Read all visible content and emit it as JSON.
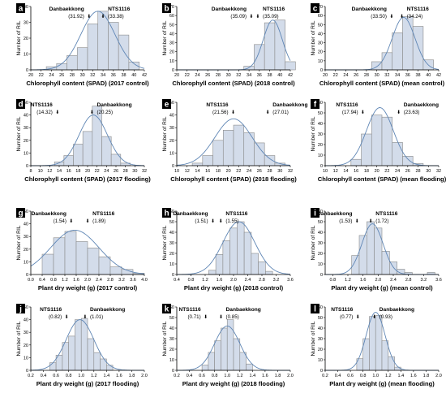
{
  "figure": {
    "colors": {
      "bar_fill": "#d3dcea",
      "bar_stroke": "#8a8a8a",
      "curve": "#5f86b5",
      "frame": "#000000",
      "label_box": "#000000"
    },
    "arrow_glyph": "⬇"
  },
  "chart_data": [
    {
      "panel_label": "a",
      "type": "bar",
      "xlabel": "Chlorophyll content (SPAD) (2017 control)",
      "ylabel": "Number of RIL",
      "x_ticks": [
        "20",
        "22",
        "24",
        "26",
        "28",
        "30",
        "32",
        "34",
        "36",
        "38",
        "40",
        "42"
      ],
      "xlim": [
        20,
        42
      ],
      "y_ticks": [
        "0",
        "10",
        "20",
        "30",
        "40"
      ],
      "ylim": [
        0,
        40
      ],
      "bin_width": 2,
      "bins": [
        {
          "x": 24,
          "y": 2
        },
        {
          "x": 26,
          "y": 4
        },
        {
          "x": 28,
          "y": 9
        },
        {
          "x": 30,
          "y": 14
        },
        {
          "x": 32,
          "y": 29
        },
        {
          "x": 34,
          "y": 37
        },
        {
          "x": 36,
          "y": 30
        },
        {
          "x": 38,
          "y": 22
        },
        {
          "x": 40,
          "y": 5
        }
      ],
      "curve": {
        "mean": 33.0,
        "sd": 3.3,
        "peak": 37
      },
      "annotations": [
        {
          "name": "Danbaekkong",
          "value": "(31.92)",
          "x": 31.92
        },
        {
          "name": "NTS1116",
          "value": "(33.38)",
          "x": 33.38
        }
      ]
    },
    {
      "panel_label": "b",
      "type": "bar",
      "xlabel": "Chlorophyll content (SPAD) (2018 control)",
      "ylabel": "Number of RIL",
      "x_ticks": [
        "20",
        "22",
        "24",
        "26",
        "28",
        "30",
        "32",
        "34",
        "36",
        "38",
        "40",
        "42"
      ],
      "xlim": [
        20,
        42
      ],
      "y_ticks": [
        "0",
        "10",
        "20",
        "30",
        "40",
        "50",
        "60",
        "70"
      ],
      "ylim": [
        0,
        70
      ],
      "bin_width": 2,
      "bins": [
        {
          "x": 34,
          "y": 4
        },
        {
          "x": 36,
          "y": 28
        },
        {
          "x": 38,
          "y": 52
        },
        {
          "x": 40,
          "y": 55
        },
        {
          "x": 42,
          "y": 9
        }
      ],
      "curve": {
        "mean": 38.6,
        "sd": 1.85,
        "peak": 55
      },
      "annotations": [
        {
          "name": "Danbaekkong",
          "value": "(35.09)",
          "x": 35.09
        },
        {
          "name": "NTS1116",
          "value": "(35.09)",
          "x": 35.09
        }
      ]
    },
    {
      "panel_label": "c",
      "type": "bar",
      "xlabel": "Chlorophyll content (SPAD) (mean control)",
      "ylabel": "Number of RIL",
      "x_ticks": [
        "20",
        "22",
        "24",
        "26",
        "28",
        "30",
        "32",
        "34",
        "36",
        "38",
        "40",
        "42"
      ],
      "xlim": [
        20,
        42
      ],
      "y_ticks": [
        "0",
        "10",
        "20",
        "30",
        "40",
        "50",
        "60",
        "70"
      ],
      "ylim": [
        0,
        70
      ],
      "bin_width": 2,
      "bins": [
        {
          "x": 30,
          "y": 9
        },
        {
          "x": 32,
          "y": 19
        },
        {
          "x": 34,
          "y": 41
        },
        {
          "x": 36,
          "y": 59
        },
        {
          "x": 38,
          "y": 48
        },
        {
          "x": 40,
          "y": 11
        }
      ],
      "curve": {
        "mean": 35.2,
        "sd": 2.2,
        "peak": 58
      },
      "annotations": [
        {
          "name": "Danbaekkong",
          "value": "(33.50)",
          "x": 33.5
        },
        {
          "name": "NTS1116",
          "value": "(34.24)",
          "x": 34.24
        }
      ]
    },
    {
      "panel_label": "d",
      "type": "bar",
      "xlabel": "Chlorophyll content (SPAD) (2017 flooding)",
      "ylabel": "Number of RIL",
      "x_ticks": [
        "8",
        "10",
        "12",
        "14",
        "16",
        "18",
        "20",
        "22",
        "24",
        "26",
        "28",
        "30",
        "32"
      ],
      "xlim": [
        8,
        32
      ],
      "y_ticks": [
        "0",
        "10",
        "20",
        "30",
        "40",
        "50"
      ],
      "ylim": [
        0,
        50
      ],
      "bin_width": 2,
      "bins": [
        {
          "x": 14,
          "y": 3
        },
        {
          "x": 16,
          "y": 8
        },
        {
          "x": 18,
          "y": 17
        },
        {
          "x": 20,
          "y": 27
        },
        {
          "x": 22,
          "y": 47
        },
        {
          "x": 24,
          "y": 23
        },
        {
          "x": 26,
          "y": 9
        },
        {
          "x": 28,
          "y": 2
        }
      ],
      "curve": {
        "mean": 21.2,
        "sd": 3.0,
        "peak": 40
      },
      "annotations": [
        {
          "name": "NTS1116",
          "value": "(14.32)",
          "x": 14.32
        },
        {
          "name": "Danbaekkong",
          "value": "(20.25)",
          "x": 20.25
        }
      ]
    },
    {
      "panel_label": "e",
      "type": "bar",
      "xlabel": "Chlorophyll content (SPAD) (2018 flooding)",
      "ylabel": "Number of RIL",
      "x_ticks": [
        "10",
        "12",
        "14",
        "16",
        "18",
        "20",
        "22",
        "24",
        "26",
        "28",
        "30",
        "32"
      ],
      "xlim": [
        10,
        32
      ],
      "y_ticks": [
        "0",
        "10",
        "20",
        "30",
        "40",
        "50"
      ],
      "ylim": [
        0,
        50
      ],
      "bin_width": 2,
      "bins": [
        {
          "x": 14,
          "y": 2
        },
        {
          "x": 16,
          "y": 8
        },
        {
          "x": 18,
          "y": 20
        },
        {
          "x": 20,
          "y": 28
        },
        {
          "x": 22,
          "y": 32
        },
        {
          "x": 24,
          "y": 26
        },
        {
          "x": 26,
          "y": 18
        },
        {
          "x": 28,
          "y": 8
        },
        {
          "x": 30,
          "y": 2
        }
      ],
      "curve": {
        "mean": 21.0,
        "sd": 3.6,
        "peak": 37
      },
      "annotations": [
        {
          "name": "NTS1116",
          "value": "(21.56)",
          "x": 21.56
        },
        {
          "name": "Danbaekkong",
          "value": "(27.01)",
          "x": 27.01
        }
      ]
    },
    {
      "panel_label": "f",
      "type": "bar",
      "xlabel": "Chlorophyll content (SPAD) (mean flooding)",
      "ylabel": "Number of RIL",
      "x_ticks": [
        "10",
        "12",
        "14",
        "16",
        "18",
        "20",
        "22",
        "24",
        "26",
        "28",
        "30",
        "32"
      ],
      "xlim": [
        10,
        32
      ],
      "y_ticks": [
        "0",
        "10",
        "20",
        "30",
        "40",
        "50",
        "60"
      ],
      "ylim": [
        0,
        60
      ],
      "bin_width": 2,
      "bins": [
        {
          "x": 16,
          "y": 6
        },
        {
          "x": 18,
          "y": 30
        },
        {
          "x": 20,
          "y": 48
        },
        {
          "x": 22,
          "y": 46
        },
        {
          "x": 24,
          "y": 22
        },
        {
          "x": 26,
          "y": 9
        },
        {
          "x": 28,
          "y": 2
        }
      ],
      "curve": {
        "mean": 20.6,
        "sd": 2.6,
        "peak": 55
      },
      "annotations": [
        {
          "name": "NTS1116",
          "value": "(17.94)",
          "x": 17.94
        },
        {
          "name": "Danbaekkong",
          "value": "(23.63)",
          "x": 23.63
        }
      ]
    },
    {
      "panel_label": "g",
      "type": "bar",
      "xlabel": "Plant dry weight (g) (2017 control)",
      "ylabel": "Number of RIL",
      "x_ticks": [
        "0.0",
        "0.4",
        "0.8",
        "1.2",
        "1.6",
        "2.0",
        "2.4",
        "2.8",
        "3.2",
        "3.6",
        "4.0"
      ],
      "xlim": [
        0,
        4
      ],
      "y_ticks": [
        "0",
        "10",
        "20",
        "30",
        "40",
        "50"
      ],
      "ylim": [
        0,
        50
      ],
      "bin_width": 0.4,
      "bins": [
        {
          "x": 0.6,
          "y": 16
        },
        {
          "x": 1.0,
          "y": 29
        },
        {
          "x": 1.4,
          "y": 34
        },
        {
          "x": 1.8,
          "y": 26
        },
        {
          "x": 2.2,
          "y": 21
        },
        {
          "x": 2.6,
          "y": 14
        },
        {
          "x": 3.0,
          "y": 6
        },
        {
          "x": 3.4,
          "y": 4
        },
        {
          "x": 3.8,
          "y": 1
        }
      ],
      "curve": {
        "mean": 1.55,
        "sd": 0.85,
        "peak": 35
      },
      "annotations": [
        {
          "name": "Danbaekkong",
          "value": "(1.54)",
          "x": 1.54
        },
        {
          "name": "NTS1116",
          "value": "(1.89)",
          "x": 1.89
        }
      ]
    },
    {
      "panel_label": "h",
      "type": "bar",
      "xlabel": "Plant dry weight (g) (2018 control)",
      "ylabel": "Number of RIL",
      "x_ticks": [
        "0.4",
        "0.8",
        "1.2",
        "1.6",
        "2.0",
        "2.4",
        "2.8",
        "3.2",
        "3.6"
      ],
      "xlim": [
        0.4,
        3.6
      ],
      "y_ticks": [
        "0",
        "10",
        "20",
        "30",
        "40",
        "50",
        "60"
      ],
      "ylim": [
        0,
        60
      ],
      "bin_width": 0.2,
      "bins": [
        {
          "x": 1.4,
          "y": 4
        },
        {
          "x": 1.6,
          "y": 19
        },
        {
          "x": 1.8,
          "y": 32
        },
        {
          "x": 2.0,
          "y": 44
        },
        {
          "x": 2.2,
          "y": 50
        },
        {
          "x": 2.4,
          "y": 40
        },
        {
          "x": 2.6,
          "y": 20
        },
        {
          "x": 2.8,
          "y": 12
        },
        {
          "x": 3.0,
          "y": 3
        }
      ],
      "curve": {
        "mean": 2.15,
        "sd": 0.45,
        "peak": 50
      },
      "annotations": [
        {
          "name": "Danbaekkong",
          "value": "(1.51)",
          "x": 1.51
        },
        {
          "name": "NTS1116",
          "value": "(1.55)",
          "x": 1.55
        }
      ]
    },
    {
      "panel_label": "i",
      "type": "bar",
      "xlabel": "Plant dry weight (g) (mean control)",
      "ylabel": "Number of RIL",
      "x_ticks": [
        "0.8",
        "1.2",
        "1.6",
        "2.0",
        "2.4",
        "2.8",
        "3.2",
        "3.6"
      ],
      "xlim": [
        0.6,
        3.6
      ],
      "y_ticks": [
        "0",
        "10",
        "20",
        "30",
        "40",
        "50",
        "60"
      ],
      "ylim": [
        0,
        60
      ],
      "bin_width": 0.2,
      "bins": [
        {
          "x": 1.4,
          "y": 18
        },
        {
          "x": 1.6,
          "y": 37
        },
        {
          "x": 1.8,
          "y": 50
        },
        {
          "x": 2.0,
          "y": 44
        },
        {
          "x": 2.2,
          "y": 22
        },
        {
          "x": 2.4,
          "y": 12
        },
        {
          "x": 2.6,
          "y": 5
        },
        {
          "x": 2.8,
          "y": 2
        },
        {
          "x": 3.4,
          "y": 2
        }
      ],
      "curve": {
        "mean": 1.85,
        "sd": 0.28,
        "peak": 48
      },
      "annotations": [
        {
          "name": "Danbaekkong",
          "value": "(1.53)",
          "x": 1.53
        },
        {
          "name": "NTS1116",
          "value": "(1.72)",
          "x": 1.72
        }
      ]
    },
    {
      "panel_label": "j",
      "type": "bar",
      "xlabel": "Plant dry weight (g) (2017 flooding)",
      "ylabel": "Number of RIL",
      "x_ticks": [
        "0.2",
        "0.4",
        "0.6",
        "0.8",
        "1.0",
        "1.2",
        "1.4",
        "1.6",
        "1.8",
        "2.0"
      ],
      "xlim": [
        0.2,
        2.0
      ],
      "y_ticks": [
        "0",
        "10",
        "20",
        "30",
        "40",
        "50"
      ],
      "ylim": [
        0,
        50
      ],
      "bin_width": 0.1,
      "bins": [
        {
          "x": 0.55,
          "y": 6
        },
        {
          "x": 0.65,
          "y": 12
        },
        {
          "x": 0.75,
          "y": 22
        },
        {
          "x": 0.85,
          "y": 27
        },
        {
          "x": 0.95,
          "y": 40
        },
        {
          "x": 1.05,
          "y": 41
        },
        {
          "x": 1.15,
          "y": 25
        },
        {
          "x": 1.25,
          "y": 14
        },
        {
          "x": 1.35,
          "y": 9
        },
        {
          "x": 1.45,
          "y": 4
        }
      ],
      "curve": {
        "mean": 0.98,
        "sd": 0.22,
        "peak": 40
      },
      "annotations": [
        {
          "name": "NTS1116",
          "value": "(0.82)",
          "x": 0.82
        },
        {
          "name": "Danbaekkong",
          "value": "(1.01)",
          "x": 1.01
        }
      ]
    },
    {
      "panel_label": "k",
      "type": "bar",
      "xlabel": "Plant dry weight (g) (2018 flooding)",
      "ylabel": "Number of RIL",
      "x_ticks": [
        "0.2",
        "0.4",
        "0.6",
        "0.8",
        "1.0",
        "1.2",
        "1.4",
        "1.6",
        "1.8",
        "2.0"
      ],
      "xlim": [
        0.2,
        2.0
      ],
      "y_ticks": [
        "0",
        "10",
        "20",
        "30",
        "40",
        "50",
        "60"
      ],
      "ylim": [
        0,
        60
      ],
      "bin_width": 0.1,
      "bins": [
        {
          "x": 0.65,
          "y": 5
        },
        {
          "x": 0.75,
          "y": 17
        },
        {
          "x": 0.85,
          "y": 28
        },
        {
          "x": 0.95,
          "y": 40
        },
        {
          "x": 1.05,
          "y": 48
        },
        {
          "x": 1.15,
          "y": 30
        },
        {
          "x": 1.25,
          "y": 17
        },
        {
          "x": 1.35,
          "y": 6
        }
      ],
      "curve": {
        "mean": 1.0,
        "sd": 0.2,
        "peak": 42
      },
      "annotations": [
        {
          "name": "NTS1116",
          "value": "(0.71)",
          "x": 0.71
        },
        {
          "name": "Danbaekkong",
          "value": "(0.85)",
          "x": 0.85
        }
      ]
    },
    {
      "panel_label": "l",
      "type": "bar",
      "xlabel": "Plant dry weight (g) (mean flooding)",
      "ylabel": "Number of RIL",
      "x_ticks": [
        "0.2",
        "0.4",
        "0.6",
        "0.8",
        "1.0",
        "1.2",
        "1.4",
        "1.6",
        "1.8",
        "2.0"
      ],
      "xlim": [
        0.2,
        2.0
      ],
      "y_ticks": [
        "0",
        "10",
        "20",
        "30",
        "40",
        "50",
        "60"
      ],
      "ylim": [
        0,
        60
      ],
      "bin_width": 0.1,
      "bins": [
        {
          "x": 0.75,
          "y": 11
        },
        {
          "x": 0.85,
          "y": 30
        },
        {
          "x": 0.95,
          "y": 51
        },
        {
          "x": 1.05,
          "y": 52
        },
        {
          "x": 1.15,
          "y": 28
        },
        {
          "x": 1.25,
          "y": 13
        },
        {
          "x": 1.35,
          "y": 3
        }
      ],
      "curve": {
        "mean": 1.0,
        "sd": 0.15,
        "peak": 55
      },
      "annotations": [
        {
          "name": "NTS1116",
          "value": "(0.77)",
          "x": 0.77
        },
        {
          "name": "Danbaekkong",
          "value": "(0.93)",
          "x": 0.93
        }
      ]
    }
  ]
}
